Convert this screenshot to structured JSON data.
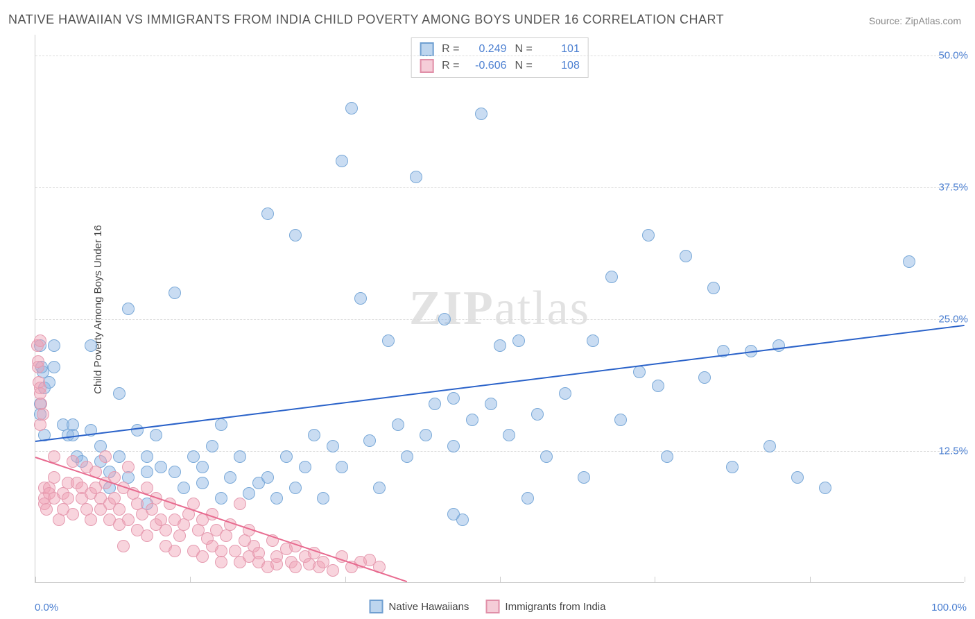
{
  "title": "NATIVE HAWAIIAN VS IMMIGRANTS FROM INDIA CHILD POVERTY AMONG BOYS UNDER 16 CORRELATION CHART",
  "source_label": "Source: ",
  "source_value": "ZipAtlas.com",
  "y_axis_label": "Child Poverty Among Boys Under 16",
  "watermark_a": "ZIP",
  "watermark_b": "atlas",
  "chart": {
    "type": "scatter",
    "xlim": [
      0,
      100
    ],
    "ylim": [
      0,
      52
    ],
    "y_ticks": [
      12.5,
      25.0,
      37.5,
      50.0
    ],
    "y_tick_labels": [
      "12.5%",
      "25.0%",
      "37.5%",
      "50.0%"
    ],
    "x_tick_positions": [
      0,
      16.67,
      33.33,
      50,
      66.67,
      83.33,
      100
    ],
    "x_min_label": "0.0%",
    "x_max_label": "100.0%",
    "background_color": "#ffffff",
    "grid_color": "#dddddd",
    "marker_radius": 9,
    "marker_stroke_width": 1.5,
    "series": [
      {
        "name": "Native Hawaiians",
        "fill_color": "rgba(135,178,226,0.45)",
        "stroke_color": "#7aa9d8",
        "swatch_fill": "#bdd5ee",
        "swatch_border": "#6f9fd1",
        "R": "0.249",
        "N": "101",
        "trend": {
          "x1": 0,
          "y1": 13.5,
          "x2": 100,
          "y2": 24.5,
          "color": "#2a62c9",
          "width": 2
        },
        "points": [
          [
            1,
            14
          ],
          [
            0.5,
            17
          ],
          [
            1,
            18.5
          ],
          [
            0.8,
            20
          ],
          [
            0.7,
            20.5
          ],
          [
            0.5,
            16
          ],
          [
            2,
            22.5
          ],
          [
            2,
            20.5
          ],
          [
            1.5,
            19
          ],
          [
            0.5,
            22.5
          ],
          [
            3,
            15
          ],
          [
            3.5,
            14
          ],
          [
            4,
            15
          ],
          [
            4,
            14
          ],
          [
            4.5,
            12
          ],
          [
            5,
            11.5
          ],
          [
            6,
            22.5
          ],
          [
            6,
            14.5
          ],
          [
            7,
            13
          ],
          [
            7,
            11.5
          ],
          [
            8,
            10.5
          ],
          [
            8,
            9
          ],
          [
            9,
            18
          ],
          [
            9,
            12
          ],
          [
            10,
            26
          ],
          [
            10,
            10
          ],
          [
            11,
            14.5
          ],
          [
            12,
            12
          ],
          [
            12,
            10.5
          ],
          [
            12,
            7.5
          ],
          [
            13,
            14
          ],
          [
            13.5,
            11
          ],
          [
            15,
            27.5
          ],
          [
            15,
            10.5
          ],
          [
            16,
            9
          ],
          [
            17,
            12
          ],
          [
            18,
            11
          ],
          [
            18,
            9.5
          ],
          [
            19,
            13
          ],
          [
            20,
            15
          ],
          [
            20,
            8
          ],
          [
            21,
            10
          ],
          [
            22,
            12
          ],
          [
            23,
            8.5
          ],
          [
            24,
            9.5
          ],
          [
            25,
            10
          ],
          [
            25,
            35
          ],
          [
            26,
            8
          ],
          [
            27,
            12
          ],
          [
            28,
            9
          ],
          [
            28,
            33
          ],
          [
            29,
            11
          ],
          [
            30,
            14
          ],
          [
            31,
            8
          ],
          [
            32,
            13
          ],
          [
            33,
            40
          ],
          [
            33,
            11
          ],
          [
            34,
            45
          ],
          [
            35,
            27
          ],
          [
            36,
            13.5
          ],
          [
            37,
            9
          ],
          [
            38,
            23
          ],
          [
            39,
            15
          ],
          [
            40,
            12
          ],
          [
            41,
            38.5
          ],
          [
            42,
            14
          ],
          [
            43,
            17
          ],
          [
            44,
            25
          ],
          [
            45,
            13
          ],
          [
            45,
            17.5
          ],
          [
            46,
            6
          ],
          [
            47,
            15.5
          ],
          [
            48,
            44.5
          ],
          [
            49,
            17
          ],
          [
            50,
            22.5
          ],
          [
            51,
            14
          ],
          [
            52,
            23
          ],
          [
            53,
            8
          ],
          [
            54,
            16
          ],
          [
            55,
            12
          ],
          [
            57,
            18
          ],
          [
            59,
            10
          ],
          [
            60,
            23
          ],
          [
            62,
            29
          ],
          [
            63,
            15.5
          ],
          [
            65,
            20
          ],
          [
            66,
            33
          ],
          [
            67,
            18.7
          ],
          [
            68,
            12
          ],
          [
            70,
            31
          ],
          [
            72,
            19.5
          ],
          [
            73,
            28
          ],
          [
            74,
            22
          ],
          [
            75,
            11
          ],
          [
            77,
            22
          ],
          [
            79,
            13
          ],
          [
            80,
            22.5
          ],
          [
            82,
            10
          ],
          [
            85,
            9
          ],
          [
            94,
            30.5
          ],
          [
            45,
            6.5
          ]
        ]
      },
      {
        "name": "Immigrants from India",
        "fill_color": "rgba(240,160,180,0.45)",
        "stroke_color": "#e59bb0",
        "swatch_fill": "#f5cdd8",
        "swatch_border": "#e08fa8",
        "R": "-0.606",
        "N": "108",
        "trend": {
          "x1": 0,
          "y1": 12.0,
          "x2": 40,
          "y2": 0.2,
          "color": "#e86a8f",
          "width": 2
        },
        "points": [
          [
            0.2,
            22.5
          ],
          [
            0.3,
            21
          ],
          [
            0.3,
            20.5
          ],
          [
            0.4,
            19
          ],
          [
            0.5,
            18.5
          ],
          [
            0.5,
            18
          ],
          [
            0.6,
            17
          ],
          [
            0.5,
            15
          ],
          [
            0.5,
            23
          ],
          [
            0.8,
            16
          ],
          [
            1,
            9
          ],
          [
            1,
            8
          ],
          [
            1,
            7.5
          ],
          [
            1.2,
            7
          ],
          [
            1.5,
            9
          ],
          [
            1.5,
            8.5
          ],
          [
            2,
            8
          ],
          [
            2,
            10
          ],
          [
            2,
            12
          ],
          [
            2.5,
            6
          ],
          [
            3,
            8.5
          ],
          [
            3,
            7
          ],
          [
            3.5,
            9.5
          ],
          [
            3.5,
            8
          ],
          [
            4,
            11.5
          ],
          [
            4,
            6.5
          ],
          [
            4.5,
            9.5
          ],
          [
            5,
            8
          ],
          [
            5,
            9
          ],
          [
            5.5,
            11
          ],
          [
            5.5,
            7
          ],
          [
            6,
            8.5
          ],
          [
            6,
            6
          ],
          [
            6.5,
            9
          ],
          [
            6.5,
            10.5
          ],
          [
            7,
            8
          ],
          [
            7,
            7
          ],
          [
            7.5,
            12
          ],
          [
            7.5,
            9.5
          ],
          [
            8,
            7.5
          ],
          [
            8,
            6
          ],
          [
            8.5,
            8
          ],
          [
            8.5,
            10
          ],
          [
            9,
            5.5
          ],
          [
            9,
            7
          ],
          [
            9.5,
            3.5
          ],
          [
            9.5,
            9
          ],
          [
            10,
            11
          ],
          [
            10,
            6
          ],
          [
            10.5,
            8.5
          ],
          [
            11,
            5
          ],
          [
            11,
            7.5
          ],
          [
            11.5,
            6.5
          ],
          [
            12,
            9
          ],
          [
            12,
            4.5
          ],
          [
            12.5,
            7
          ],
          [
            13,
            5.5
          ],
          [
            13,
            8
          ],
          [
            13.5,
            6
          ],
          [
            14,
            3.5
          ],
          [
            14,
            5
          ],
          [
            14.5,
            7.5
          ],
          [
            15,
            6
          ],
          [
            15,
            3
          ],
          [
            15.5,
            4.5
          ],
          [
            16,
            5.5
          ],
          [
            16.5,
            6.5
          ],
          [
            17,
            3
          ],
          [
            17,
            7.5
          ],
          [
            17.5,
            5
          ],
          [
            18,
            2.5
          ],
          [
            18,
            6
          ],
          [
            18.5,
            4.2
          ],
          [
            19,
            3.5
          ],
          [
            19,
            6.5
          ],
          [
            19.5,
            5
          ],
          [
            20,
            3
          ],
          [
            20,
            2
          ],
          [
            20.5,
            4.5
          ],
          [
            21,
            5.5
          ],
          [
            21.5,
            3
          ],
          [
            22,
            7.5
          ],
          [
            22,
            2
          ],
          [
            22.5,
            4
          ],
          [
            23,
            2.5
          ],
          [
            23,
            5
          ],
          [
            23.5,
            3.5
          ],
          [
            24,
            2
          ],
          [
            24,
            2.8
          ],
          [
            25,
            1.5
          ],
          [
            25.5,
            4
          ],
          [
            26,
            2.5
          ],
          [
            26,
            1.8
          ],
          [
            27,
            3.2
          ],
          [
            27.5,
            2
          ],
          [
            28,
            3.5
          ],
          [
            28,
            1.5
          ],
          [
            29,
            2.5
          ],
          [
            29.5,
            1.8
          ],
          [
            30,
            2.8
          ],
          [
            30.5,
            1.5
          ],
          [
            31,
            2
          ],
          [
            32,
            1.2
          ],
          [
            33,
            2.5
          ],
          [
            34,
            1.5
          ],
          [
            35,
            2
          ],
          [
            36,
            2.2
          ],
          [
            37,
            1.5
          ]
        ]
      }
    ]
  },
  "legend_labels": {
    "R": "R =",
    "N": "N =",
    "series1": "Native Hawaiians",
    "series2": "Immigrants from India"
  }
}
